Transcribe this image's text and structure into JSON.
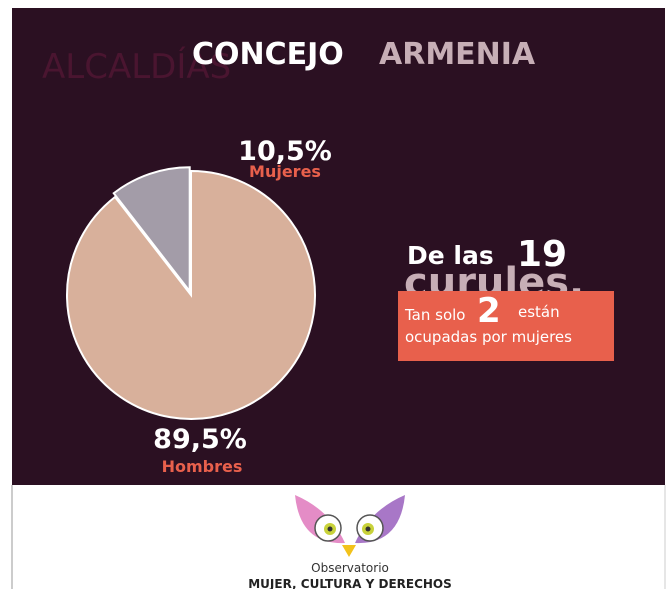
{
  "chart_data": {
    "type": "pie",
    "background_text": "ALCALDÍAS",
    "title": "CONCEJO",
    "title_highlight": "ARMENIA",
    "categories": [
      "Mujeres",
      "Hombres"
    ],
    "values": [
      10.5,
      89.5
    ],
    "value_labels": [
      "10,5%",
      "89,5%"
    ],
    "colors": [
      "#a39ca8",
      "#d8b09b"
    ],
    "annotation": {
      "prefix": "De las",
      "total_seats": 19,
      "seats_word": "curules,",
      "line1_start": "Tan solo",
      "women_seats": 2,
      "line1_end": "están",
      "line2": "ocupadas por mujeres"
    }
  },
  "footer": {
    "line1": "Observatorio",
    "line2": "MUJER, CULTURA Y DERECHOS"
  }
}
